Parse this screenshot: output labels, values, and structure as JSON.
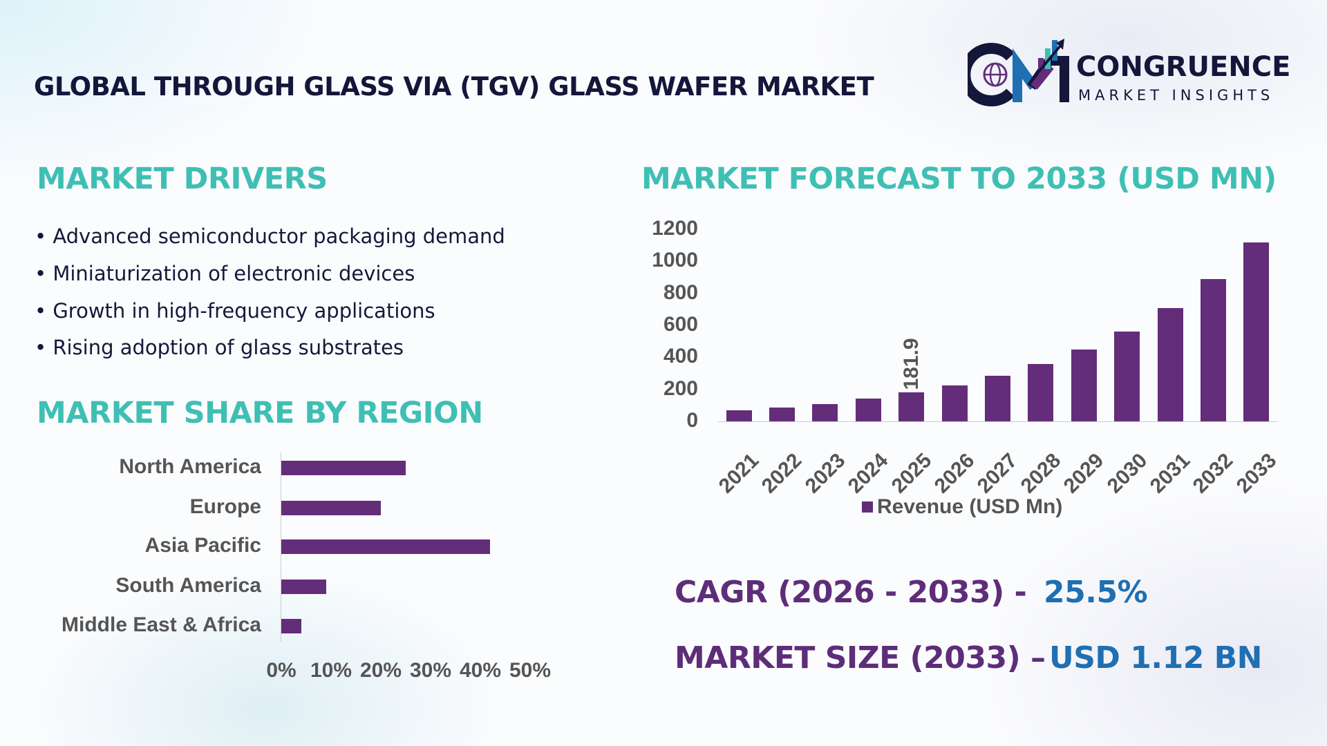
{
  "header": {
    "title": "GLOBAL THROUGH GLASS VIA (TGV) GLASS WAFER MARKET",
    "logo": {
      "name": "CONGRUENCE",
      "tagline": "MARKET INSIGHTS"
    }
  },
  "drivers": {
    "heading": "MARKET DRIVERS",
    "items": [
      "• Advanced semiconductor packaging demand",
      "• Miniaturization of electronic devices",
      "• Growth in high-frequency applications",
      "• Rising adoption of glass substrates"
    ]
  },
  "colors": {
    "teal": "#3fbfb4",
    "purple": "#632d79",
    "blue": "#1f6fb2",
    "navy": "#14163a"
  },
  "chart_data": [
    {
      "type": "bar",
      "orientation": "horizontal",
      "title": "MARKET SHARE BY REGION",
      "categories": [
        "North America",
        "Europe",
        "Asia Pacific",
        "South America",
        "Middle East & Africa"
      ],
      "values": [
        25,
        20,
        42,
        9,
        4
      ],
      "unit": "%",
      "xlim": [
        0,
        50
      ],
      "xticks": [
        "0%",
        "10%",
        "20%",
        "30%",
        "40%",
        "50%"
      ],
      "grid": false
    },
    {
      "type": "bar",
      "title": "MARKET FORECAST TO 2033 (USD MN)",
      "categories": [
        "2021",
        "2022",
        "2023",
        "2024",
        "2025",
        "2026",
        "2027",
        "2028",
        "2029",
        "2030",
        "2031",
        "2032",
        "2033"
      ],
      "series": [
        {
          "name": "Revenue (USD Mn)",
          "values": [
            70,
            88,
            110,
            143,
            181.9,
            225,
            285,
            357,
            448,
            563,
            708,
            888,
            1120
          ]
        }
      ],
      "data_labels": {
        "2025": "181.9"
      },
      "ylim": [
        0,
        1200
      ],
      "yticks": [
        "0",
        "200",
        "400",
        "600",
        "800",
        "1000",
        "1200"
      ],
      "grid": false,
      "legend": "bottom"
    }
  ],
  "stats": {
    "cagr_label": "CAGR (2026 - 2033) -",
    "cagr_value": "25.5%",
    "size_label": "MARKET SIZE (2033) –",
    "size_value": "USD 1.12 BN"
  }
}
